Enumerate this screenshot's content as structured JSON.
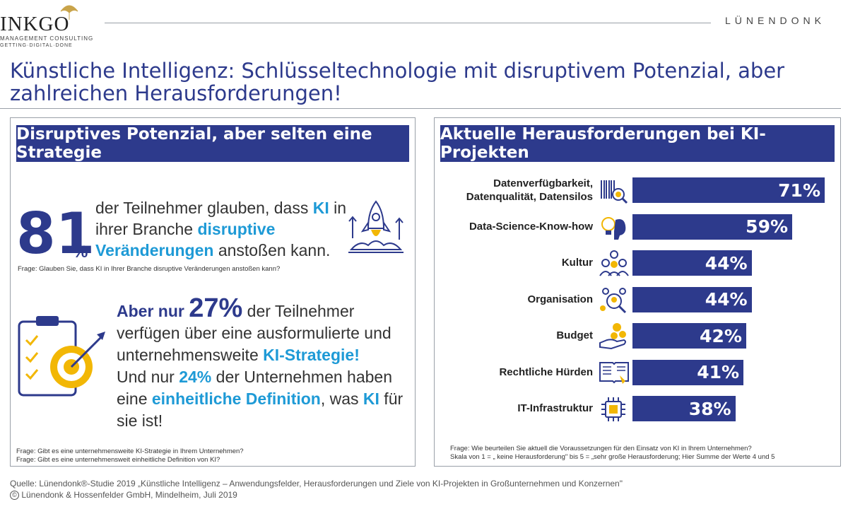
{
  "header": {
    "logo_main": "INKGO",
    "logo_sub1": "MANAGEMENT CONSULTING",
    "logo_sub2": "GETTING·DIGITAL·DONE",
    "brand": "LÜNENDONK",
    "title": "Künstliche Intelligenz: Schlüsseltechnologie mit disruptivem Potenzial, aber zahlreichen Herausforderungen!"
  },
  "left_panel": {
    "heading": "Disruptives Potenzial, aber selten eine Strategie",
    "stat1": {
      "number": "81",
      "unit": "%",
      "text_a": "der Teilnehmer glauben, dass ",
      "text_ki": "KI",
      "text_b": " in ihrer Branche ",
      "text_disruptive": "disruptive Veränderungen",
      "text_c": " anstoßen kann.",
      "question": "Frage: Glauben Sie, dass KI in Ihrer Branche disruptive Veränderungen anstoßen kann?"
    },
    "stat2": {
      "lead": "Aber nur ",
      "number": "27%",
      "text_a": " der Teilnehmer verfügen über eine ausformulierte und unternehmensweite ",
      "text_strategy": "KI-Strategie!",
      "text_b": "Und nur ",
      "number2": "24%",
      "text_c": " der Unternehmen haben eine ",
      "text_definition": "einheitliche Definition",
      "text_d": ", was ",
      "text_ki": "KI",
      "text_e": " für sie ist!",
      "question1": "Frage: Gibt es eine unternehmensweite KI-Strategie in Ihrem Unternehmen?",
      "question2": "Frage: Gibt es eine unternehmensweit einheitliche Definition von KI?"
    }
  },
  "right_panel": {
    "heading": "Aktuelle Herausforderungen bei KI-Projekten",
    "question1": "Frage: Wie beurteilen Sie aktuell die Voraussetzungen für den Einsatz von KI in Ihrem Unternehmen?",
    "question2": "Skala von 1 = „ keine Herausforderung\" bis 5 = „sehr große Herausforderung; Hier Summe der Werte 4 und 5"
  },
  "chart_data": {
    "type": "bar",
    "orientation": "horizontal",
    "title": "Aktuelle Herausforderungen bei KI-Projekten",
    "categories": [
      "Datenverfügbarkeit, Datenqualität, Datensilos",
      "Data-Science-Know-how",
      "Kultur",
      "Organisation",
      "Budget",
      "Rechtliche Hürden",
      "IT-Infrastruktur"
    ],
    "values": [
      71,
      59,
      44,
      44,
      42,
      41,
      38
    ],
    "value_labels": [
      "71%",
      "59%",
      "44%",
      "44%",
      "42%",
      "41%",
      "38%"
    ],
    "icons": [
      "barcode-magnifier-icon",
      "brain-lightbulb-icon",
      "people-group-icon",
      "organization-search-icon",
      "coins-hand-icon",
      "law-book-icon",
      "chip-icon"
    ],
    "xlim": [
      0,
      71
    ],
    "color": "#2d3a8c"
  },
  "footer": {
    "source": "Quelle: Lünendonk®-Studie 2019 „Künstliche Intelligenz – Anwendungsfelder, Herausforderungen und Ziele von KI-Projekten in Großunternehmen und Konzernen\"",
    "copyright_symbol": "©",
    "copyright": "Lünendonk & Hossenfelder GmbH, Mindelheim, Juli 2019"
  },
  "colors": {
    "primary": "#2d3a8c",
    "accent": "#1e9ad6",
    "gold": "#f2b705"
  }
}
